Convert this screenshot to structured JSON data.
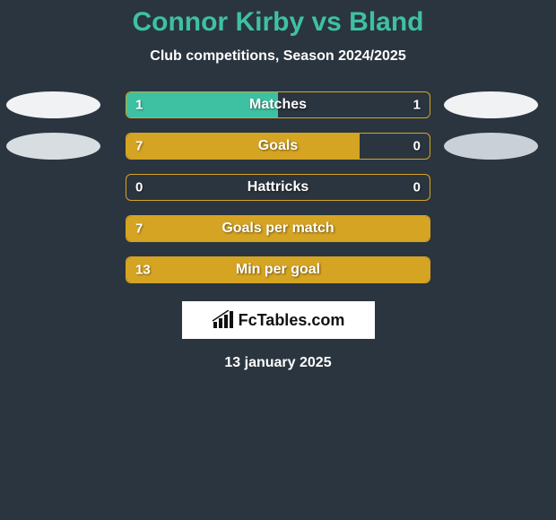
{
  "title": "Connor Kirby vs Bland",
  "subtitle": "Club competitions, Season 2024/2025",
  "date": "13 january 2025",
  "logo_text": "FcTables.com",
  "colors": {
    "background": "#2b353f",
    "title_color": "#3ec1a2",
    "bar_border": "#d6a423",
    "bar_fill_teal": "#3ec1a2",
    "bar_fill_gold": "#d6a423",
    "ellipse_light": "#f0f2f4",
    "ellipse_medium": "#d8dde2",
    "ellipse_dark": "#c9d0d7",
    "text": "#ffffff"
  },
  "rows": [
    {
      "label": "Matches",
      "left_val": "1",
      "right_val": "1",
      "fill_color": "#3ec1a2",
      "fill_pct": 50,
      "ellipse_left_color": "#f0f2f4",
      "ellipse_right_color": "#f0f2f4",
      "show_right": true,
      "show_ellipses": true
    },
    {
      "label": "Goals",
      "left_val": "7",
      "right_val": "0",
      "fill_color": "#d6a423",
      "fill_pct": 77,
      "ellipse_left_color": "#d8dde2",
      "ellipse_right_color": "#c9d0d7",
      "show_right": true,
      "show_ellipses": true
    },
    {
      "label": "Hattricks",
      "left_val": "0",
      "right_val": "0",
      "fill_color": "#d6a423",
      "fill_pct": 0,
      "ellipse_left_color": "",
      "ellipse_right_color": "",
      "show_right": true,
      "show_ellipses": false
    },
    {
      "label": "Goals per match",
      "left_val": "7",
      "right_val": "",
      "fill_color": "#d6a423",
      "fill_pct": 100,
      "ellipse_left_color": "",
      "ellipse_right_color": "",
      "show_right": false,
      "show_ellipses": false
    },
    {
      "label": "Min per goal",
      "left_val": "13",
      "right_val": "",
      "fill_color": "#d6a423",
      "fill_pct": 100,
      "ellipse_left_color": "",
      "ellipse_right_color": "",
      "show_right": false,
      "show_ellipses": false
    }
  ]
}
